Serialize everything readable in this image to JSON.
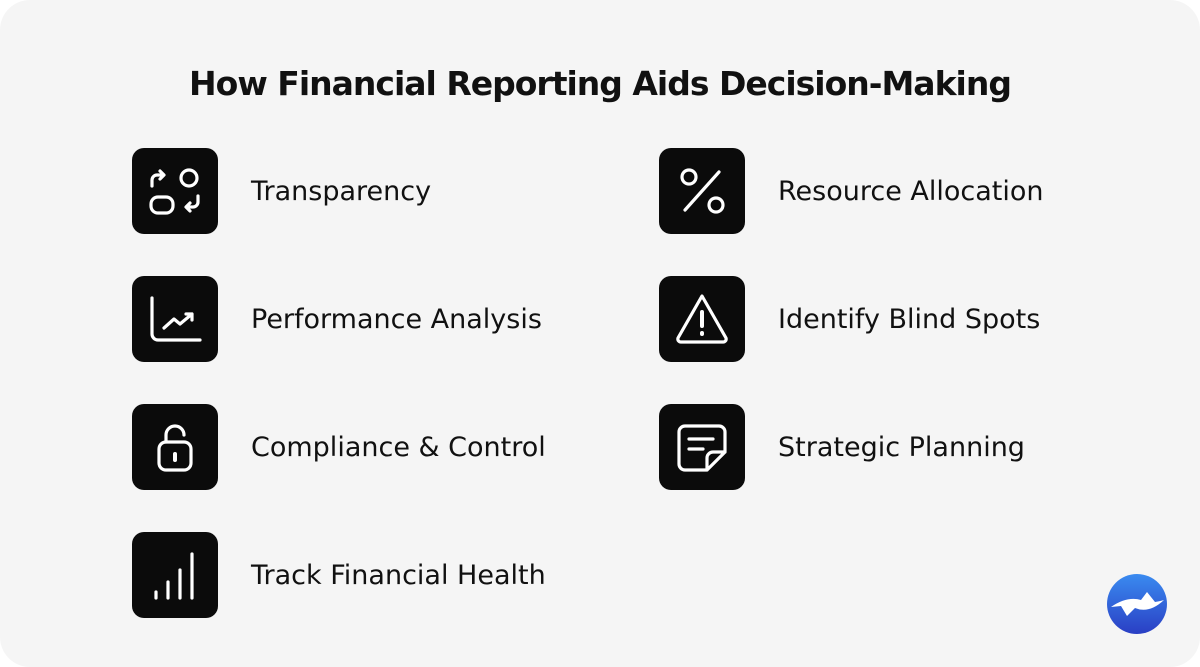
{
  "title": "How Financial Reporting Aids Decision-Making",
  "left": [
    {
      "label": "Transparency"
    },
    {
      "label": "Performance Analysis"
    },
    {
      "label": "Compliance & Control"
    },
    {
      "label": "Track Financial Health"
    }
  ],
  "right": [
    {
      "label": "Resource Allocation"
    },
    {
      "label": "Identify Blind Spots"
    },
    {
      "label": "Strategic Planning"
    }
  ]
}
